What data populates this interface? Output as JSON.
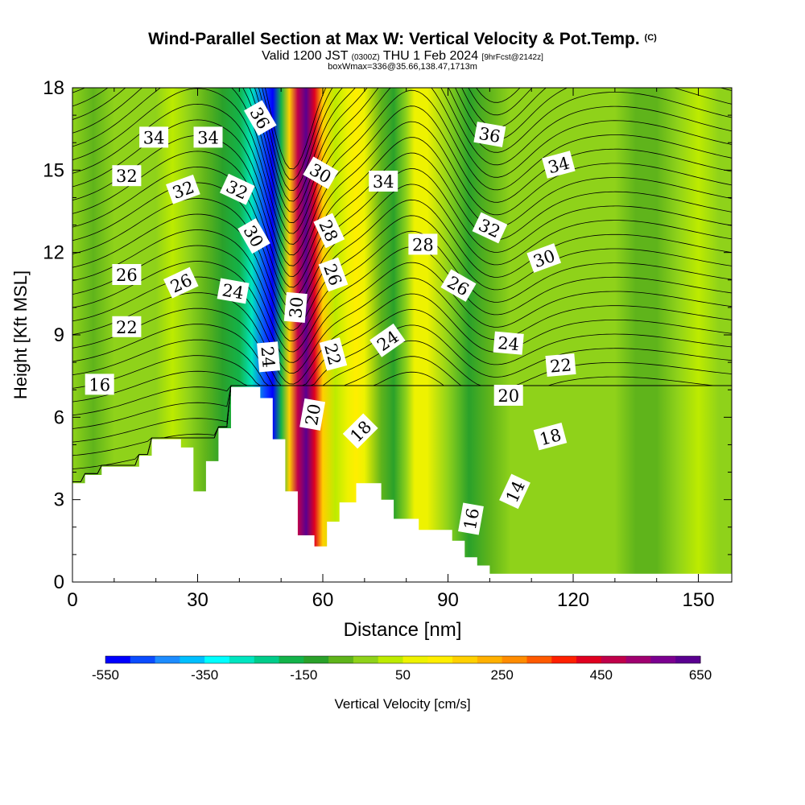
{
  "header": {
    "title": "Wind-Parallel Section at Max W: Vertical Velocity & Pot.Temp.",
    "title_tag": "(C)",
    "subtitle_prefix": "Valid 1200 JST",
    "subtitle_utc": "(0300Z)",
    "subtitle_date": "THU 1 Feb 2024",
    "subtitle_fcst": "[9hrFcst@2142z]",
    "subtitle2": "boxWmax=336@35.66,138.47,1713m"
  },
  "chart_data": {
    "type": "heatmap",
    "xlabel": "Distance [nm]",
    "ylabel": "Height [Kft MSL]",
    "xlim": [
      0,
      158
    ],
    "ylim": [
      0,
      18
    ],
    "x_ticks": [
      0,
      30,
      60,
      90,
      120,
      150
    ],
    "y_ticks": [
      0,
      3,
      6,
      9,
      12,
      15,
      18
    ],
    "colorbar": {
      "label": "Vertical Velocity [cm/s]",
      "tick_labels": [
        -550,
        -350,
        -150,
        50,
        250,
        450,
        650
      ],
      "colors": [
        "#0000ff",
        "#0b4cff",
        "#1d8cff",
        "#00bfff",
        "#00ffff",
        "#00e5c0",
        "#00cc8a",
        "#13b34a",
        "#2aa12a",
        "#5fb41b",
        "#8fd21a",
        "#bdeb00",
        "#eef200",
        "#ffee00",
        "#ffd000",
        "#ffb000",
        "#ff8c00",
        "#ff5a00",
        "#ff2000",
        "#e00020",
        "#c0004a",
        "#a00070",
        "#7b0090",
        "#5a0090"
      ]
    },
    "w_cm_s": [
      {
        "x": 0,
        "w": -40
      },
      {
        "x": 5,
        "w": -55
      },
      {
        "x": 10,
        "w": -40
      },
      {
        "x": 14,
        "w": -30
      },
      {
        "x": 20,
        "w": -10
      },
      {
        "x": 24,
        "w": 10
      },
      {
        "x": 28,
        "w": -20
      },
      {
        "x": 32,
        "w": -60
      },
      {
        "x": 36,
        "w": -110
      },
      {
        "x": 40,
        "w": -170
      },
      {
        "x": 43,
        "w": -300
      },
      {
        "x": 46,
        "w": -460
      },
      {
        "x": 48,
        "w": -540
      },
      {
        "x": 50,
        "w": -200
      },
      {
        "x": 52,
        "w": 180
      },
      {
        "x": 54,
        "w": 480
      },
      {
        "x": 56,
        "w": 660
      },
      {
        "x": 58,
        "w": 420
      },
      {
        "x": 60,
        "w": 170
      },
      {
        "x": 63,
        "w": 30
      },
      {
        "x": 66,
        "w": 60
      },
      {
        "x": 68,
        "w": 140
      },
      {
        "x": 70,
        "w": 60
      },
      {
        "x": 74,
        "w": -100
      },
      {
        "x": 77,
        "w": -150
      },
      {
        "x": 80,
        "w": -40
      },
      {
        "x": 82,
        "w": 90
      },
      {
        "x": 85,
        "w": 60
      },
      {
        "x": 90,
        "w": -40
      },
      {
        "x": 95,
        "w": -110
      },
      {
        "x": 100,
        "w": -70
      },
      {
        "x": 105,
        "w": -20
      },
      {
        "x": 110,
        "w": -10
      },
      {
        "x": 115,
        "w": -40
      },
      {
        "x": 120,
        "w": -30
      },
      {
        "x": 125,
        "w": -10
      },
      {
        "x": 130,
        "w": -40
      },
      {
        "x": 135,
        "w": -70
      },
      {
        "x": 140,
        "w": -60
      },
      {
        "x": 145,
        "w": -20
      },
      {
        "x": 150,
        "w": 0
      },
      {
        "x": 155,
        "w": -30
      },
      {
        "x": 158,
        "w": -50
      }
    ],
    "terrain_kft": [
      {
        "x": 0,
        "h": 3.6
      },
      {
        "x": 3,
        "h": 3.6
      },
      {
        "x": 3,
        "h": 3.9
      },
      {
        "x": 7,
        "h": 3.9
      },
      {
        "x": 7,
        "h": 4.2
      },
      {
        "x": 16,
        "h": 4.2
      },
      {
        "x": 16,
        "h": 4.6
      },
      {
        "x": 19,
        "h": 4.6
      },
      {
        "x": 19,
        "h": 5.2
      },
      {
        "x": 26,
        "h": 5.2
      },
      {
        "x": 26,
        "h": 4.9
      },
      {
        "x": 29,
        "h": 4.9
      },
      {
        "x": 29,
        "h": 3.3
      },
      {
        "x": 32,
        "h": 3.3
      },
      {
        "x": 32,
        "h": 4.4
      },
      {
        "x": 35,
        "h": 4.4
      },
      {
        "x": 35,
        "h": 5.6
      },
      {
        "x": 38,
        "h": 5.6
      },
      {
        "x": 38,
        "h": 7.1
      },
      {
        "x": 45,
        "h": 7.1
      },
      {
        "x": 45,
        "h": 6.7
      },
      {
        "x": 48,
        "h": 6.7
      },
      {
        "x": 48,
        "h": 5.2
      },
      {
        "x": 51,
        "h": 5.2
      },
      {
        "x": 51,
        "h": 3.3
      },
      {
        "x": 54,
        "h": 3.3
      },
      {
        "x": 54,
        "h": 1.7
      },
      {
        "x": 58,
        "h": 1.7
      },
      {
        "x": 58,
        "h": 1.3
      },
      {
        "x": 61,
        "h": 1.3
      },
      {
        "x": 61,
        "h": 2.2
      },
      {
        "x": 64,
        "h": 2.2
      },
      {
        "x": 64,
        "h": 2.9
      },
      {
        "x": 68,
        "h": 2.9
      },
      {
        "x": 68,
        "h": 3.6
      },
      {
        "x": 74,
        "h": 3.6
      },
      {
        "x": 74,
        "h": 3.0
      },
      {
        "x": 77,
        "h": 3.0
      },
      {
        "x": 77,
        "h": 2.3
      },
      {
        "x": 83,
        "h": 2.3
      },
      {
        "x": 83,
        "h": 1.9
      },
      {
        "x": 91,
        "h": 1.9
      },
      {
        "x": 91,
        "h": 1.5
      },
      {
        "x": 94,
        "h": 1.5
      },
      {
        "x": 94,
        "h": 0.9
      },
      {
        "x": 97,
        "h": 0.9
      },
      {
        "x": 97,
        "h": 0.6
      },
      {
        "x": 100,
        "h": 0.6
      },
      {
        "x": 100,
        "h": 0.3
      },
      {
        "x": 158,
        "h": 0.3
      },
      {
        "x": 158,
        "h": 0
      },
      {
        "x": 0,
        "h": 0
      }
    ],
    "theta_contour_labels": [
      {
        "text": "34",
        "x": 19.5,
        "y": 16.2,
        "rot": 0
      },
      {
        "text": "34",
        "x": 32.5,
        "y": 16.2,
        "rot": 0
      },
      {
        "text": "36",
        "x": 45.0,
        "y": 16.9,
        "rot": 60
      },
      {
        "text": "32",
        "x": 13.0,
        "y": 14.8,
        "rot": 0
      },
      {
        "text": "32",
        "x": 26.5,
        "y": 14.3,
        "rot": -20
      },
      {
        "text": "32",
        "x": 39.5,
        "y": 14.3,
        "rot": 25
      },
      {
        "text": "30",
        "x": 59.5,
        "y": 14.9,
        "rot": 30
      },
      {
        "text": "34",
        "x": 74.5,
        "y": 14.6,
        "rot": 0
      },
      {
        "text": "36",
        "x": 100.0,
        "y": 16.3,
        "rot": 10
      },
      {
        "text": "34",
        "x": 116.5,
        "y": 15.2,
        "rot": -15
      },
      {
        "text": "30",
        "x": 43.5,
        "y": 12.6,
        "rot": 60
      },
      {
        "text": "28",
        "x": 61.5,
        "y": 12.8,
        "rot": 65
      },
      {
        "text": "28",
        "x": 84.0,
        "y": 12.3,
        "rot": 0
      },
      {
        "text": "32",
        "x": 100.0,
        "y": 12.9,
        "rot": 25
      },
      {
        "text": "30",
        "x": 113.0,
        "y": 11.8,
        "rot": -20
      },
      {
        "text": "26",
        "x": 13.0,
        "y": 11.2,
        "rot": 0
      },
      {
        "text": "26",
        "x": 26.0,
        "y": 10.9,
        "rot": -25
      },
      {
        "text": "24",
        "x": 38.5,
        "y": 10.6,
        "rot": 10
      },
      {
        "text": "30",
        "x": 53.5,
        "y": 10.0,
        "rot": -85
      },
      {
        "text": "26",
        "x": 62.5,
        "y": 11.2,
        "rot": 70
      },
      {
        "text": "26",
        "x": 92.5,
        "y": 10.8,
        "rot": 30
      },
      {
        "text": "22",
        "x": 13.0,
        "y": 9.3,
        "rot": 0
      },
      {
        "text": "24",
        "x": 104.5,
        "y": 8.7,
        "rot": 5
      },
      {
        "text": "24",
        "x": 75.5,
        "y": 8.8,
        "rot": -35
      },
      {
        "text": "22",
        "x": 62.5,
        "y": 8.3,
        "rot": 75
      },
      {
        "text": "22",
        "x": 117.0,
        "y": 7.9,
        "rot": -5
      },
      {
        "text": "24",
        "x": 47.0,
        "y": 8.2,
        "rot": 85
      },
      {
        "text": "16",
        "x": 6.5,
        "y": 7.2,
        "rot": 0
      },
      {
        "text": "20",
        "x": 104.5,
        "y": 6.8,
        "rot": 0
      },
      {
        "text": "20",
        "x": 57.5,
        "y": 6.1,
        "rot": -80
      },
      {
        "text": "18",
        "x": 69.0,
        "y": 5.5,
        "rot": -45
      },
      {
        "text": "18",
        "x": 114.5,
        "y": 5.3,
        "rot": -15
      },
      {
        "text": "14",
        "x": 106.0,
        "y": 3.3,
        "rot": -65
      },
      {
        "text": "16",
        "x": 95.5,
        "y": 2.3,
        "rot": -80
      }
    ]
  }
}
